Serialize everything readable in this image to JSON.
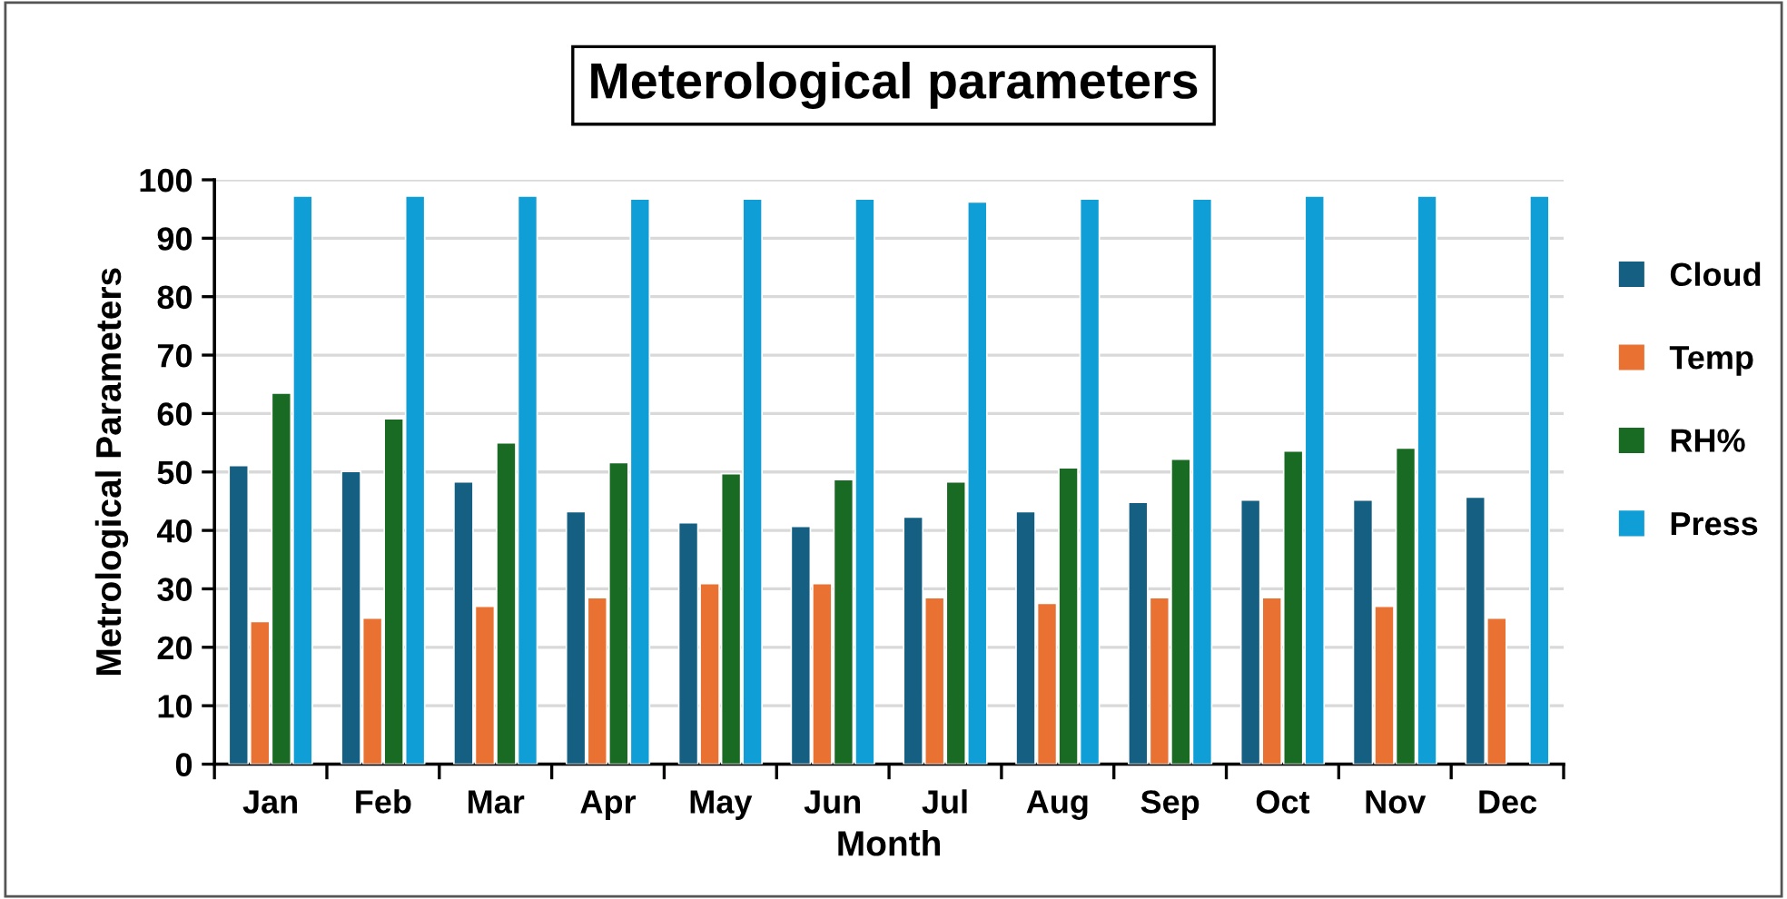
{
  "chart_data": {
    "type": "bar",
    "title": "Meterological parameters",
    "xlabel": "Month",
    "ylabel": "Metrological Parameters",
    "categories": [
      "Jan",
      "Feb",
      "Mar",
      "Apr",
      "May",
      "Jun",
      "Jul",
      "Aug",
      "Sep",
      "Oct",
      "Nov",
      "Dec"
    ],
    "series": [
      {
        "name": "Cloud",
        "color": "#156082",
        "values": [
          51.1,
          50.1,
          48.3,
          43.2,
          41.3,
          40.7,
          42.3,
          43.2,
          44.8,
          45.2,
          45.2,
          45.7
        ]
      },
      {
        "name": "Temp",
        "color": "#e97132",
        "values": [
          24.4,
          25.0,
          27.0,
          28.5,
          30.9,
          30.9,
          28.5,
          27.5,
          28.5,
          28.5,
          27.0,
          25.0
        ]
      },
      {
        "name": "RH%",
        "color": "#196b24",
        "values": [
          63.5,
          59.1,
          55.0,
          51.6,
          49.7,
          48.7,
          48.3,
          50.7,
          52.2,
          53.6,
          54.1,
          null
        ]
      },
      {
        "name": "Press",
        "color": "#0f9ed5",
        "values": [
          97.2,
          97.2,
          97.2,
          96.7,
          96.7,
          96.7,
          96.2,
          96.7,
          96.7,
          97.2,
          97.2,
          97.2
        ]
      }
    ],
    "ylim": [
      0,
      100
    ],
    "yticks": [
      0,
      10,
      20,
      30,
      40,
      50,
      60,
      70,
      80,
      90,
      100
    ],
    "grid": "y",
    "legend": "right"
  }
}
